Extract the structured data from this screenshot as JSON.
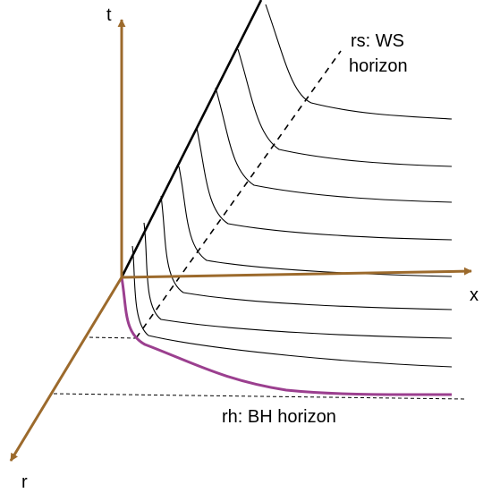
{
  "labels": {
    "t_axis": "t",
    "x_axis": "x",
    "r_axis": "r",
    "ws_horizon_line1": "rs: WS",
    "ws_horizon_line2": "horizon",
    "bh_horizon": "rh: BH horizon"
  },
  "colors": {
    "axis": "#9c6a2c",
    "bh_curve": "#9b3f8f",
    "lines": "#000000"
  }
}
